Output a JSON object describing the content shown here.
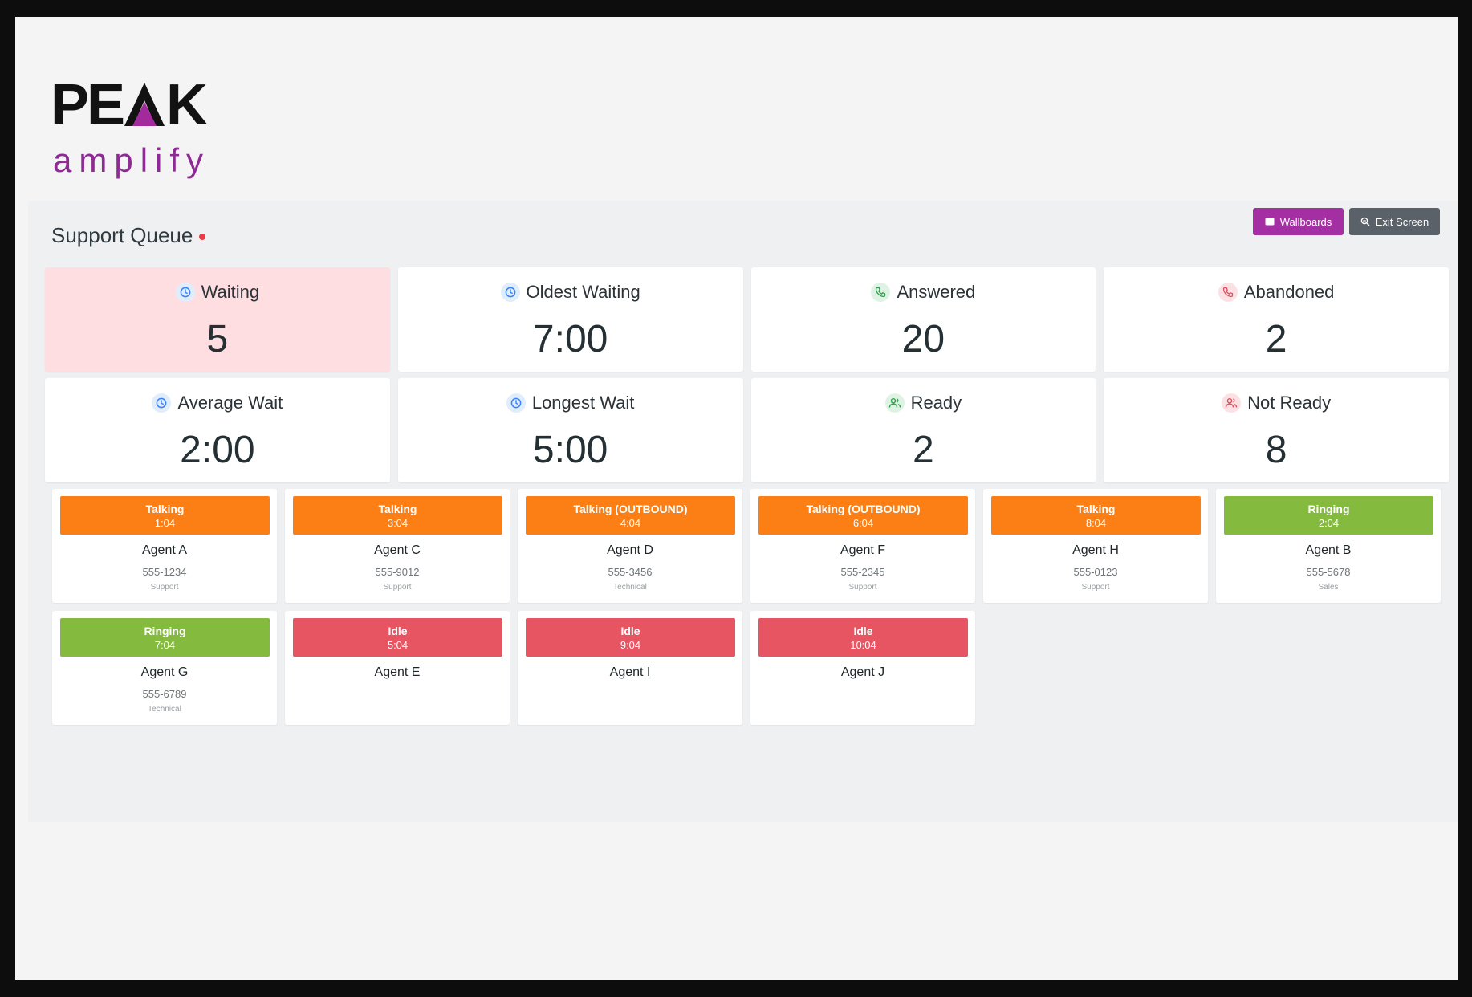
{
  "logo": {
    "word_before": "PE",
    "word_after": "K",
    "sub": "amplify",
    "accent_color": "#a22a9c"
  },
  "queue": {
    "title": "Support Queue"
  },
  "buttons": {
    "wallboards": "Wallboards",
    "exit": "Exit Screen"
  },
  "stats": [
    {
      "label": "Waiting",
      "value": "5",
      "icon": "clock-icon",
      "tone": "blue",
      "alert": true
    },
    {
      "label": "Oldest Waiting",
      "value": "7:00",
      "icon": "clock-icon",
      "tone": "blue",
      "alert": false
    },
    {
      "label": "Answered",
      "value": "20",
      "icon": "phone-icon",
      "tone": "green",
      "alert": false
    },
    {
      "label": "Abandoned",
      "value": "2",
      "icon": "phone-icon",
      "tone": "red",
      "alert": false
    },
    {
      "label": "Average Wait",
      "value": "2:00",
      "icon": "clock-icon",
      "tone": "blue",
      "alert": false
    },
    {
      "label": "Longest Wait",
      "value": "5:00",
      "icon": "clock-icon",
      "tone": "blue",
      "alert": false
    },
    {
      "label": "Ready",
      "value": "2",
      "icon": "users-icon",
      "tone": "green",
      "alert": false
    },
    {
      "label": "Not Ready",
      "value": "8",
      "icon": "users-icon",
      "tone": "red",
      "alert": false
    }
  ],
  "status_colors": {
    "talking": "#fb7f15",
    "ringing": "#84bb3e",
    "idle": "#e85562"
  },
  "agents": [
    {
      "status": "Talking",
      "state": "talking",
      "time": "1:04",
      "name": "Agent A",
      "phone": "555-1234",
      "dept": "Support"
    },
    {
      "status": "Talking",
      "state": "talking",
      "time": "3:04",
      "name": "Agent C",
      "phone": "555-9012",
      "dept": "Support"
    },
    {
      "status": "Talking (OUTBOUND)",
      "state": "talking",
      "time": "4:04",
      "name": "Agent D",
      "phone": "555-3456",
      "dept": "Technical"
    },
    {
      "status": "Talking (OUTBOUND)",
      "state": "talking",
      "time": "6:04",
      "name": "Agent F",
      "phone": "555-2345",
      "dept": "Support"
    },
    {
      "status": "Talking",
      "state": "talking",
      "time": "8:04",
      "name": "Agent H",
      "phone": "555-0123",
      "dept": "Support"
    },
    {
      "status": "Ringing",
      "state": "ringing",
      "time": "2:04",
      "name": "Agent B",
      "phone": "555-5678",
      "dept": "Sales"
    },
    {
      "status": "Ringing",
      "state": "ringing",
      "time": "7:04",
      "name": "Agent G",
      "phone": "555-6789",
      "dept": "Technical"
    },
    {
      "status": "Idle",
      "state": "idle",
      "time": "5:04",
      "name": "Agent E",
      "phone": "",
      "dept": ""
    },
    {
      "status": "Idle",
      "state": "idle",
      "time": "9:04",
      "name": "Agent I",
      "phone": "",
      "dept": ""
    },
    {
      "status": "Idle",
      "state": "idle",
      "time": "10:04",
      "name": "Agent J",
      "phone": "",
      "dept": ""
    }
  ]
}
